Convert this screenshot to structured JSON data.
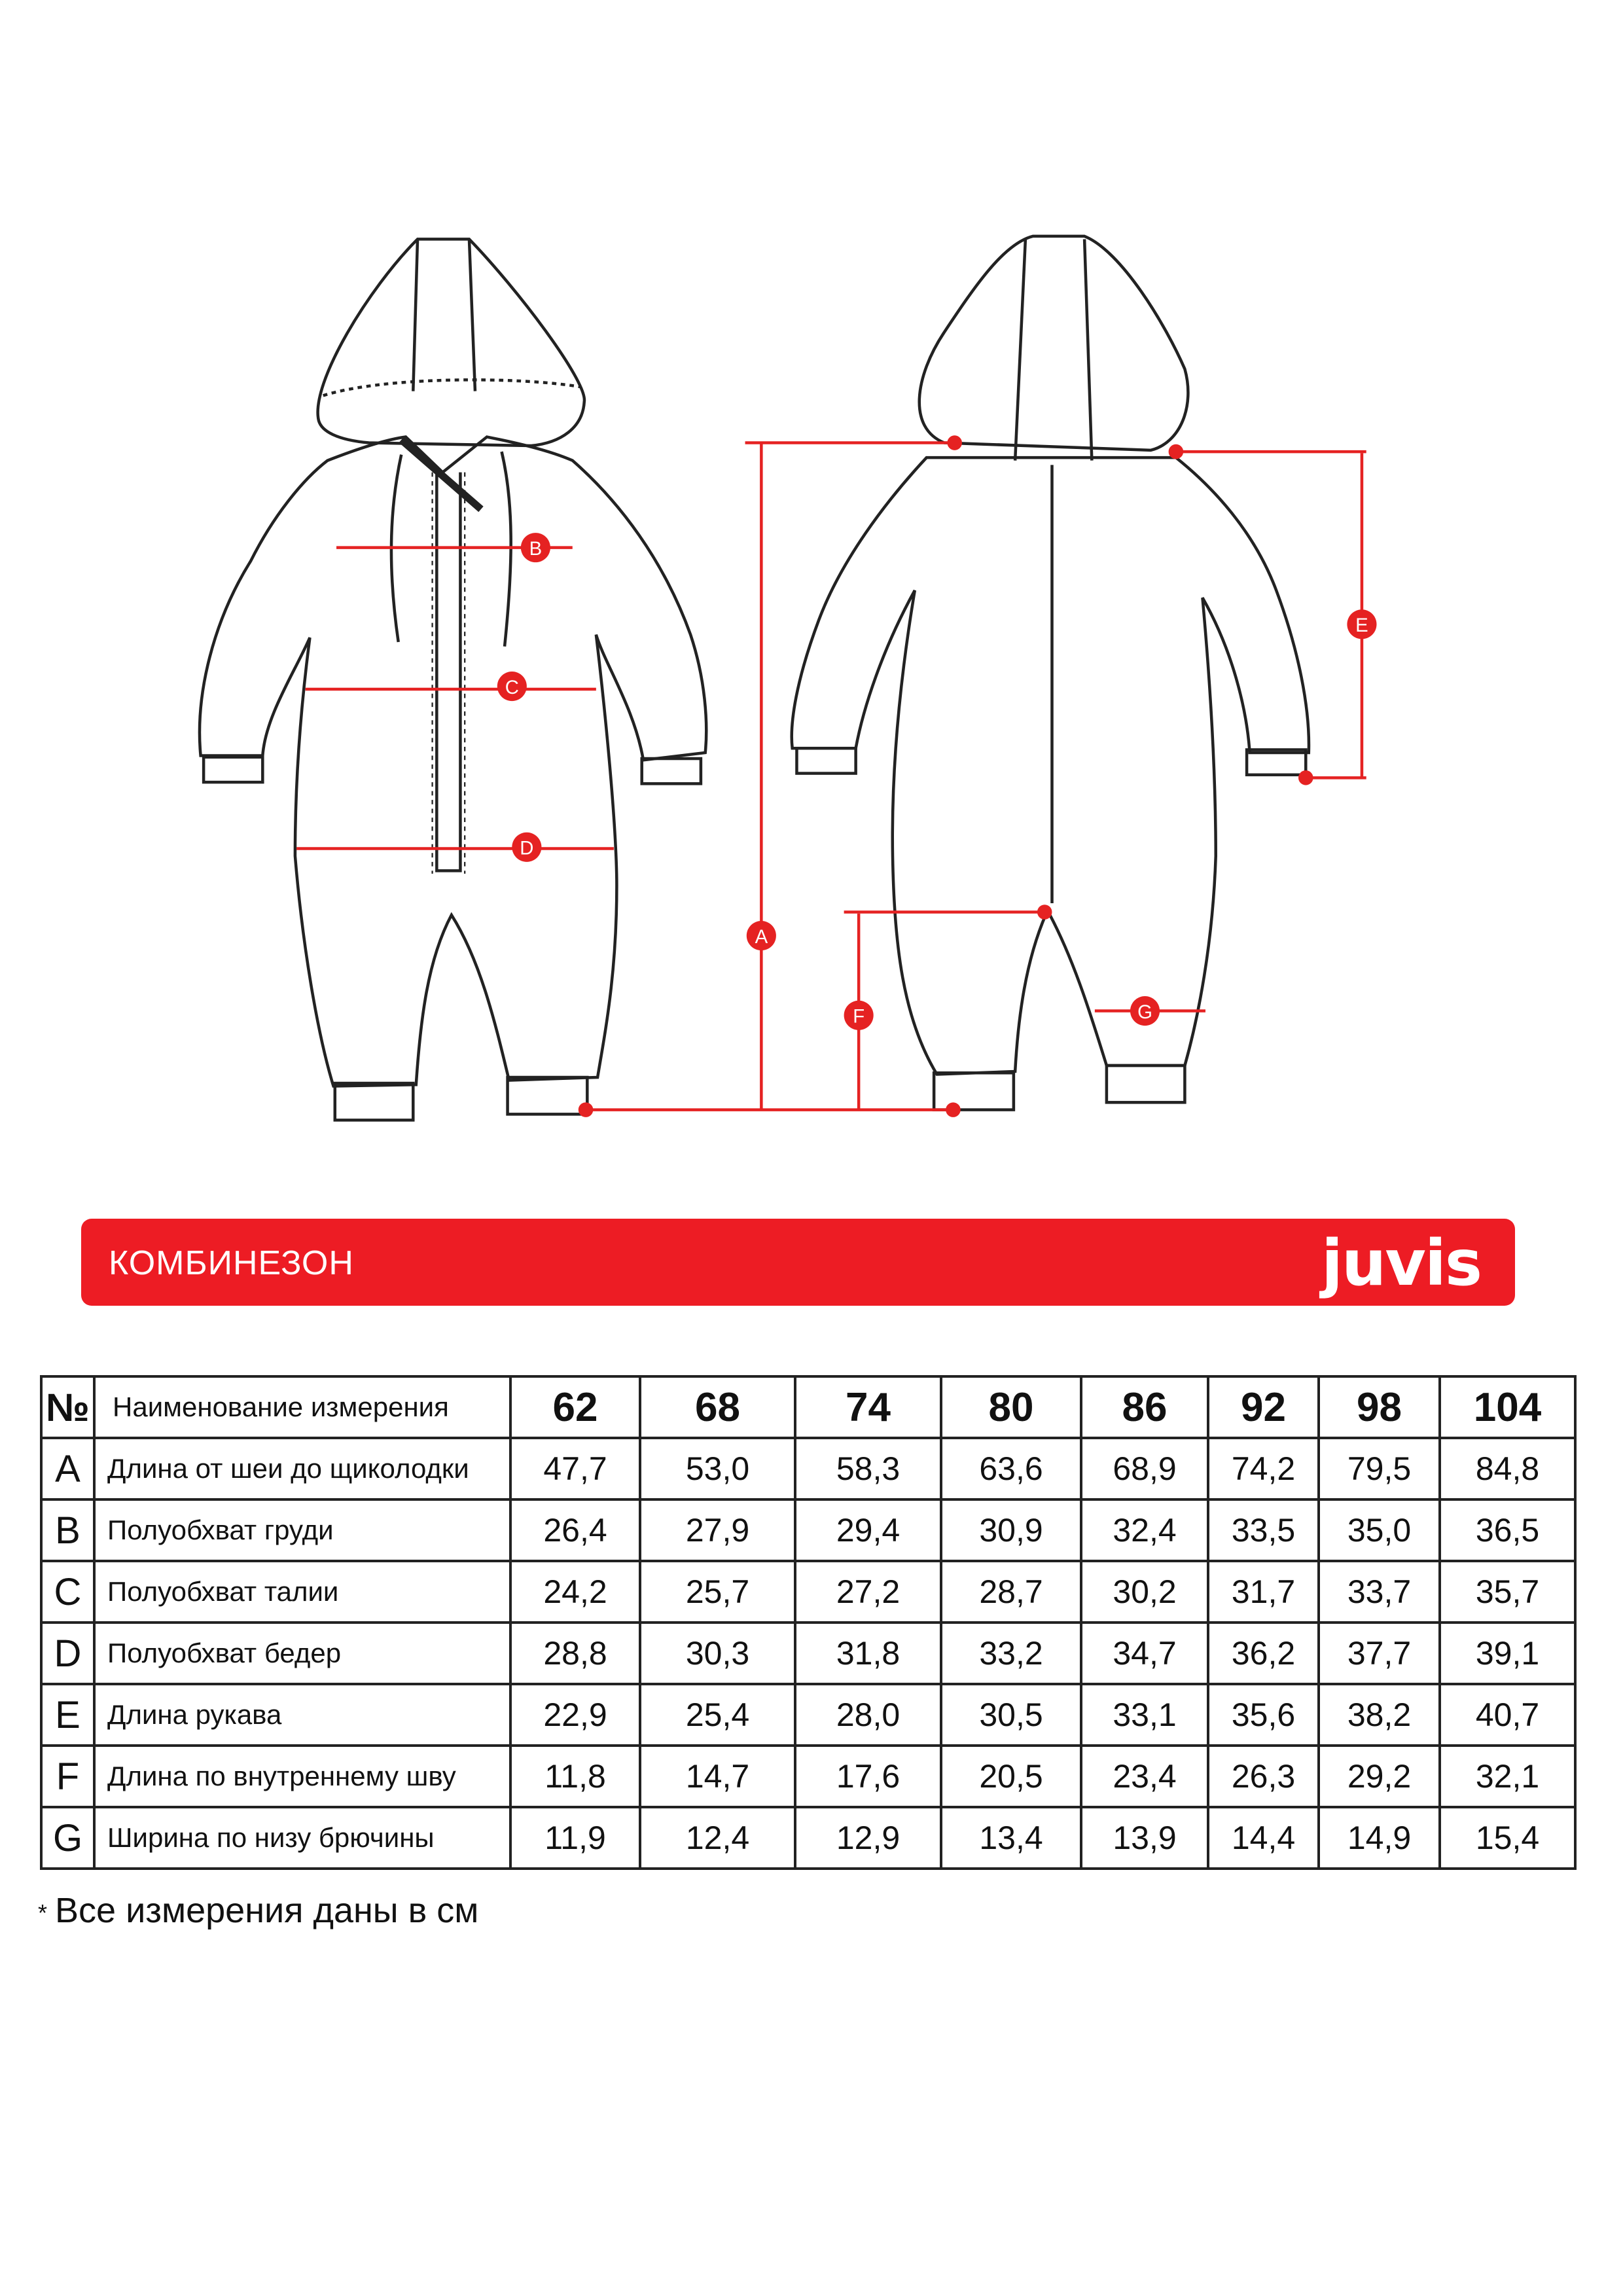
{
  "diagram": {
    "markers": [
      "A",
      "B",
      "C",
      "D",
      "E",
      "F",
      "G"
    ],
    "accent_color": "#ED1C24"
  },
  "banner": {
    "title": "КОМБИНЕЗОН",
    "logo": "juvis",
    "color": "#ED1C24"
  },
  "table": {
    "header_no": "№",
    "header_name": "Наименование измерения",
    "sizes": [
      "62",
      "68",
      "74",
      "80",
      "86",
      "92",
      "98",
      "104"
    ],
    "rows": [
      {
        "letter": "A",
        "label": "Длина  от шеи до щиколодки",
        "values": [
          "47,7",
          "53,0",
          "58,3",
          "63,6",
          "68,9",
          "74,2",
          "79,5",
          "84,8"
        ]
      },
      {
        "letter": "B",
        "label": "Полуобхват груди",
        "values": [
          "26,4",
          "27,9",
          "29,4",
          "30,9",
          "32,4",
          "33,5",
          "35,0",
          "36,5"
        ]
      },
      {
        "letter": "C",
        "label": "Полуобхват талии",
        "values": [
          "24,2",
          "25,7",
          "27,2",
          "28,7",
          "30,2",
          "31,7",
          "33,7",
          "35,7"
        ]
      },
      {
        "letter": "D",
        "label": "Полуобхват бедер",
        "values": [
          "28,8",
          "30,3",
          "31,8",
          "33,2",
          "34,7",
          "36,2",
          "37,7",
          "39,1"
        ]
      },
      {
        "letter": "E",
        "label": "Длина рукава",
        "values": [
          "22,9",
          "25,4",
          "28,0",
          "30,5",
          "33,1",
          "35,6",
          "38,2",
          "40,7"
        ]
      },
      {
        "letter": "F",
        "label": "Длина по внутреннему  шву",
        "values": [
          "11,8",
          "14,7",
          "17,6",
          "20,5",
          "23,4",
          "26,3",
          "29,2",
          "32,1"
        ]
      },
      {
        "letter": "G",
        "label": "Ширина по низу брючины",
        "values": [
          "11,9",
          "12,4",
          "12,9",
          "13,4",
          "13,9",
          "14,4",
          "14,9",
          "15,4"
        ]
      }
    ]
  },
  "footnote": {
    "star": "*",
    "text": "Все измерения даны в см"
  }
}
